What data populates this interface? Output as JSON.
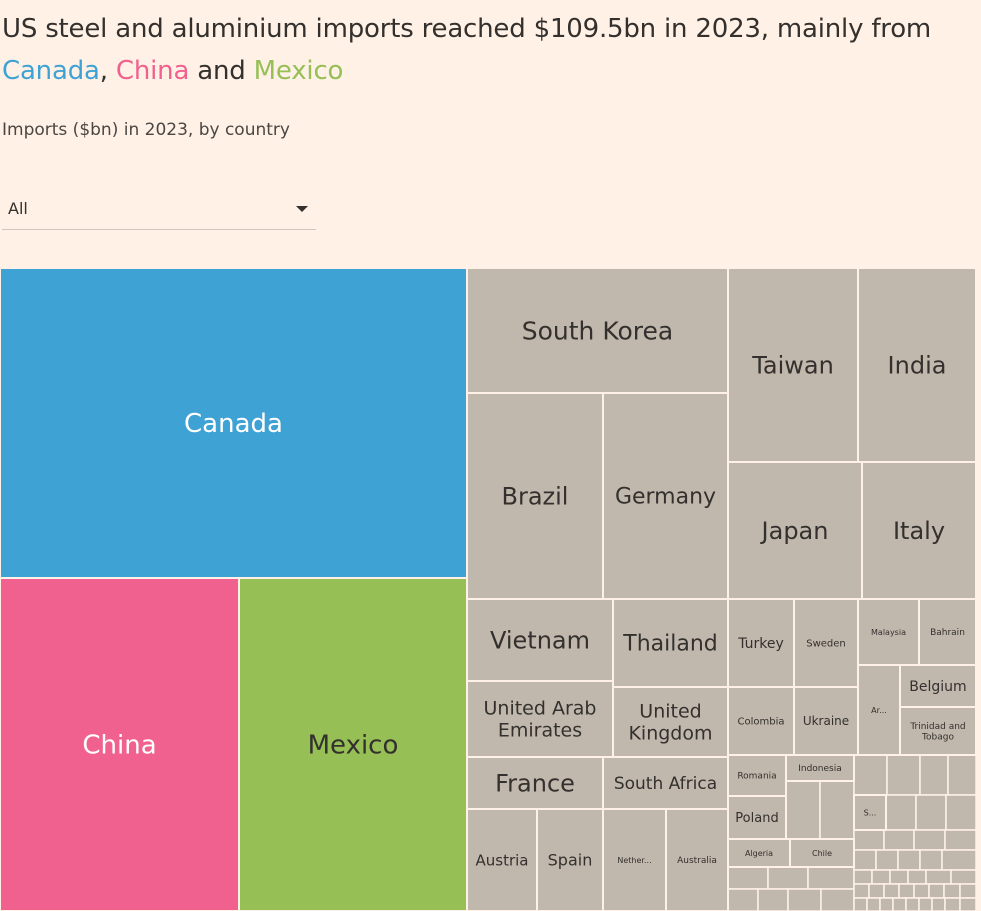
{
  "header": {
    "title_prefix": "US steel and aluminium imports reached $109.5bn in 2023, mainly from",
    "title_canada": "Canada",
    "title_comma": ",",
    "title_china": "China",
    "title_and": "and",
    "title_mexico": "Mexico",
    "subtitle": "Imports ($bn) in 2023, by country"
  },
  "filter": {
    "selected": "All"
  },
  "colors": {
    "canada": "#3fa2d5",
    "china": "#f0618f",
    "mexico": "#96bf55",
    "other": "#c1b8ad",
    "background": "#fff1e5"
  },
  "chart_data": {
    "type": "treemap",
    "total_bn": 109.5,
    "unit": "$bn",
    "countries": [
      {
        "name": "Canada",
        "lines": [
          "Canada"
        ],
        "value": 28.4,
        "group": "canada"
      },
      {
        "name": "China",
        "lines": [
          "China"
        ],
        "value": 10.6,
        "group": "china"
      },
      {
        "name": "Mexico",
        "lines": [
          "Mexico"
        ],
        "value": 10.1,
        "group": "mexico"
      },
      {
        "name": "South Korea",
        "lines": [
          "South Korea"
        ],
        "value": 4.9,
        "group": "other"
      },
      {
        "name": "Brazil",
        "lines": [
          "Brazil"
        ],
        "value": 3.1,
        "group": "other"
      },
      {
        "name": "Germany",
        "lines": [
          "Germany"
        ],
        "value": 3.0,
        "group": "other"
      },
      {
        "name": "Taiwan",
        "lines": [
          "Taiwan"
        ],
        "value": 2.8,
        "group": "other"
      },
      {
        "name": "India",
        "lines": [
          "India"
        ],
        "value": 1.9,
        "group": "other"
      },
      {
        "name": "Japan",
        "lines": [
          "Japan"
        ],
        "value": 2.6,
        "group": "other"
      },
      {
        "name": "Italy",
        "lines": [
          "Italy"
        ],
        "value": 1.9,
        "group": "other"
      },
      {
        "name": "Vietnam",
        "lines": [
          "Vietnam"
        ],
        "value": 1.6,
        "group": "other"
      },
      {
        "name": "Thailand",
        "lines": [
          "Thailand"
        ],
        "value": 1.5,
        "group": "other"
      },
      {
        "name": "United Arab Emirates",
        "lines": [
          "United Arab",
          "Emirates"
        ],
        "value": 1.4,
        "group": "other"
      },
      {
        "name": "United Kingdom",
        "lines": [
          "United",
          "Kingdom"
        ],
        "value": 1.4,
        "group": "other"
      },
      {
        "name": "France",
        "lines": [
          "France"
        ],
        "value": 1.1,
        "group": "other"
      },
      {
        "name": "South Africa",
        "lines": [
          "South Africa"
        ],
        "value": 1.1,
        "group": "other"
      },
      {
        "name": "Austria",
        "lines": [
          "Austria"
        ],
        "value": 0.9,
        "group": "other"
      },
      {
        "name": "Spain",
        "lines": [
          "Spain"
        ],
        "value": 0.9,
        "group": "other"
      },
      {
        "name": "Nether...",
        "lines": [
          "Nether..."
        ],
        "value": 0.8,
        "group": "other"
      },
      {
        "name": "Australia",
        "lines": [
          "Australia"
        ],
        "value": 0.7,
        "group": "other"
      },
      {
        "name": "Turkey",
        "lines": [
          "Turkey"
        ],
        "value": 0.7,
        "group": "other"
      },
      {
        "name": "Sweden",
        "lines": [
          "Sweden"
        ],
        "value": 0.6,
        "group": "other"
      },
      {
        "name": "Colombia",
        "lines": [
          "Colombia"
        ],
        "value": 0.6,
        "group": "other"
      },
      {
        "name": "Ukraine",
        "lines": [
          "Ukraine"
        ],
        "value": 0.6,
        "group": "other"
      },
      {
        "name": "Malaysia",
        "lines": [
          "Malaysia"
        ],
        "value": 0.4,
        "group": "other"
      },
      {
        "name": "Bahrain",
        "lines": [
          "Bahrain"
        ],
        "value": 0.4,
        "group": "other"
      },
      {
        "name": "Belgium",
        "lines": [
          "Belgium"
        ],
        "value": 0.5,
        "group": "other"
      },
      {
        "name": "Ar...",
        "lines": [
          "Ar..."
        ],
        "value": 0.4,
        "group": "other"
      },
      {
        "name": "Trinidad and Tobago",
        "lines": [
          "Trinidad and",
          "Tobago"
        ],
        "value": 0.4,
        "group": "other"
      },
      {
        "name": "Romania",
        "lines": [
          "Romania"
        ],
        "value": 0.3,
        "group": "other"
      },
      {
        "name": "Indonesia",
        "lines": [
          "Indonesia"
        ],
        "value": 0.3,
        "group": "other"
      },
      {
        "name": "Poland",
        "lines": [
          "Poland"
        ],
        "value": 0.3,
        "group": "other"
      },
      {
        "name": "Algeria",
        "lines": [
          "Algeria"
        ],
        "value": 0.2,
        "group": "other"
      },
      {
        "name": "Chile",
        "lines": [
          "Chile"
        ],
        "value": 0.2,
        "group": "other"
      },
      {
        "name": "S...",
        "lines": [
          "S..."
        ],
        "value": 0.2,
        "group": "other"
      }
    ]
  }
}
